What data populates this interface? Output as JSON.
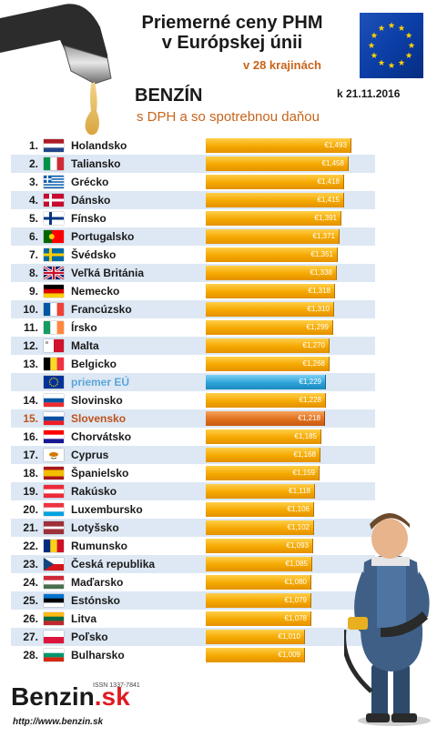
{
  "header": {
    "title_line1": "Priemerné ceny PHM",
    "title_line2": "v Európskej únii",
    "subtitle": "v 28 krajinách",
    "fuel": "BENZÍN",
    "date": "k 21.11.2016",
    "vat_note": "s DPH a so spotrebnou daňou"
  },
  "footer": {
    "issn": "ISSN 1337-7841",
    "brand_main": "Benzin",
    "brand_tld": ".sk",
    "url": "http://www.benzin.sk"
  },
  "colors": {
    "bar": "#f5a800",
    "eu_bar": "#2da3d9",
    "slovakia_bar": "#e0701e",
    "highlight_text": "#c0521a",
    "eu_text": "#5aa6d9",
    "row_alt": "#dde8f4"
  },
  "chart_data": {
    "type": "bar",
    "orientation": "horizontal",
    "title": "Priemerné ceny PHM v Európskej únii",
    "xlim": [
      0,
      1.5
    ],
    "grid": false,
    "rows": [
      {
        "rank": "1.",
        "country": "Holandsko",
        "value": 1.493,
        "label": "€1,493",
        "flag": "nl"
      },
      {
        "rank": "2.",
        "country": "Taliansko",
        "value": 1.458,
        "label": "€1,458",
        "flag": "it"
      },
      {
        "rank": "3.",
        "country": "Grécko",
        "value": 1.418,
        "label": "€1,418",
        "flag": "gr"
      },
      {
        "rank": "4.",
        "country": "Dánsko",
        "value": 1.415,
        "label": "€1,415",
        "flag": "dk"
      },
      {
        "rank": "5.",
        "country": "Fínsko",
        "value": 1.391,
        "label": "€1,391",
        "flag": "fi"
      },
      {
        "rank": "6.",
        "country": "Portugalsko",
        "value": 1.371,
        "label": "€1,371",
        "flag": "pt"
      },
      {
        "rank": "7.",
        "country": "Švédsko",
        "value": 1.351,
        "label": "€1,351",
        "flag": "se"
      },
      {
        "rank": "8.",
        "country": "Veľká Británia",
        "value": 1.338,
        "label": "€1,338",
        "flag": "gb"
      },
      {
        "rank": "9.",
        "country": "Nemecko",
        "value": 1.318,
        "label": "€1,318",
        "flag": "de"
      },
      {
        "rank": "10.",
        "country": "Francúzsko",
        "value": 1.31,
        "label": "€1,310",
        "flag": "fr"
      },
      {
        "rank": "11.",
        "country": "Írsko",
        "value": 1.299,
        "label": "€1,299",
        "flag": "ie"
      },
      {
        "rank": "12.",
        "country": "Malta",
        "value": 1.27,
        "label": "€1,270",
        "flag": "mt"
      },
      {
        "rank": "13.",
        "country": "Belgicko",
        "value": 1.268,
        "label": "€1,268",
        "flag": "be"
      },
      {
        "rank": "",
        "country": "priemer EÚ",
        "value": 1.229,
        "label": "€1,229",
        "flag": "eu",
        "kind": "eu"
      },
      {
        "rank": "14.",
        "country": "Slovinsko",
        "value": 1.228,
        "label": "€1,228",
        "flag": "si"
      },
      {
        "rank": "15.",
        "country": "Slovensko",
        "value": 1.218,
        "label": "€1,218",
        "flag": "sk",
        "kind": "sk"
      },
      {
        "rank": "16.",
        "country": "Chorvátsko",
        "value": 1.185,
        "label": "€1,185",
        "flag": "hr"
      },
      {
        "rank": "17.",
        "country": "Cyprus",
        "value": 1.168,
        "label": "€1,168",
        "flag": "cy"
      },
      {
        "rank": "18.",
        "country": "Španielsko",
        "value": 1.159,
        "label": "€1,159",
        "flag": "es"
      },
      {
        "rank": "19.",
        "country": "Rakúsko",
        "value": 1.118,
        "label": "€1,118",
        "flag": "at"
      },
      {
        "rank": "20.",
        "country": "Luxembursko",
        "value": 1.106,
        "label": "€1,106",
        "flag": "lu"
      },
      {
        "rank": "21.",
        "country": "Lotyšsko",
        "value": 1.102,
        "label": "€1,102",
        "flag": "lv"
      },
      {
        "rank": "22.",
        "country": "Rumunsko",
        "value": 1.093,
        "label": "€1,093",
        "flag": "ro"
      },
      {
        "rank": "23.",
        "country": "Česká republika",
        "value": 1.085,
        "label": "€1,085",
        "flag": "cz"
      },
      {
        "rank": "24.",
        "country": "Maďarsko",
        "value": 1.08,
        "label": "€1,080",
        "flag": "hu"
      },
      {
        "rank": "25.",
        "country": "Estónsko",
        "value": 1.079,
        "label": "€1,079",
        "flag": "ee"
      },
      {
        "rank": "26.",
        "country": "Litva",
        "value": 1.078,
        "label": "€1,078",
        "flag": "lt"
      },
      {
        "rank": "27.",
        "country": "Poľsko",
        "value": 1.01,
        "label": "€1,010",
        "flag": "pl"
      },
      {
        "rank": "28.",
        "country": "Bulharsko",
        "value": 1.009,
        "label": "€1,009",
        "flag": "bg"
      }
    ]
  }
}
